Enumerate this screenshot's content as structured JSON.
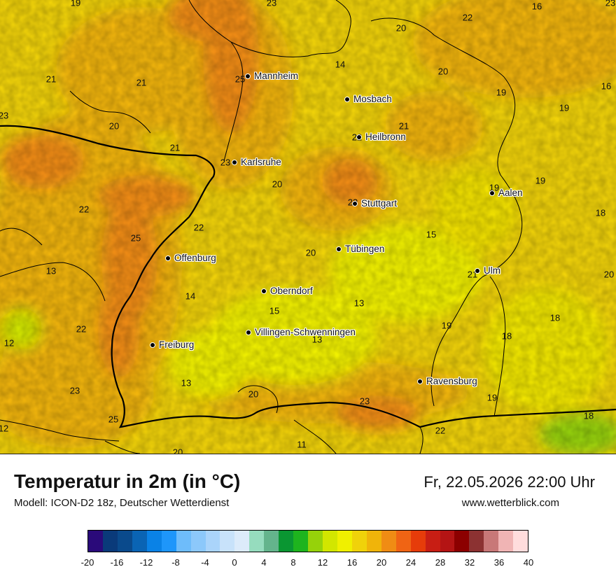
{
  "map": {
    "temperature_labels": [
      "19",
      "23",
      "16",
      "23",
      "22",
      "20",
      "20",
      "14",
      "21",
      "21",
      "16",
      "19",
      "19",
      "23",
      "25",
      "20",
      "21",
      "21",
      "22",
      "23",
      "22",
      "20",
      "23",
      "19",
      "25",
      "22",
      "19",
      "18",
      "15",
      "20",
      "13",
      "13",
      "21",
      "20",
      "14",
      "22",
      "15",
      "13",
      "19",
      "18",
      "12",
      "13",
      "18",
      "23",
      "12",
      "19",
      "20",
      "23",
      "18",
      "22",
      "25",
      "11",
      "20"
    ],
    "cities": [
      "Mannheim",
      "Mosbach",
      "Heilbronn",
      "Karlsruhe",
      "Stuttgart",
      "Aalen",
      "Tübingen",
      "Offenburg",
      "Ulm",
      "Oberndorf",
      "Villingen-Schwenningen",
      "Freiburg",
      "Ravensburg"
    ]
  },
  "header": {
    "title": "Temperatur in 2m (in °C)",
    "subtitle": "Modell: ICON-D2 18z, Deutscher Wetterdienst",
    "datetime": "Fr, 22.05.2026 22:00 Uhr",
    "website": "www.wetterblick.com"
  },
  "legend": {
    "colors": [
      "#2a0a7a",
      "#0a3a7a",
      "#0a4a8c",
      "#0a64b4",
      "#0a82e6",
      "#1e96fa",
      "#6ebcfa",
      "#8cc8fa",
      "#aad4fa",
      "#c8e2fa",
      "#dcebfa",
      "#96dcbe",
      "#64b48c",
      "#0a9632",
      "#1eb41e",
      "#96d20a",
      "#d2e600",
      "#f0f000",
      "#f0d20a",
      "#f0b40a",
      "#f08c14",
      "#f06414",
      "#e63c0a",
      "#c81e14",
      "#b41414",
      "#8c0000",
      "#8c3232",
      "#c87878",
      "#f0b4b4",
      "#ffdcdc"
    ],
    "labels": [
      "-20",
      "-16",
      "-12",
      "-8",
      "-4",
      "0",
      "4",
      "8",
      "12",
      "16",
      "20",
      "24",
      "28",
      "32",
      "36",
      "40"
    ]
  }
}
